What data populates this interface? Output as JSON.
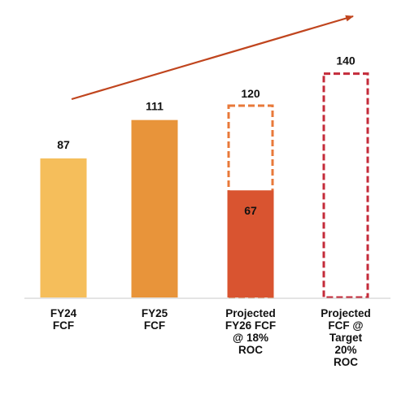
{
  "chart_data": {
    "type": "bar",
    "title": "",
    "xlabel": "",
    "ylabel": "",
    "ylim": [
      0,
      140
    ],
    "grid": false,
    "legend": "none",
    "categories": [
      [
        "FY24",
        "FCF"
      ],
      [
        "FY25",
        "FCF"
      ],
      [
        "Projected",
        "FY26 FCF",
        "@ 18%",
        "ROC"
      ],
      [
        "Projected",
        "FCF @",
        "Target",
        "20%",
        "ROC"
      ]
    ],
    "bars": [
      {
        "value": 87,
        "label": "87",
        "style": "solid",
        "color": "#F5BE5B"
      },
      {
        "value": 111,
        "label": "111",
        "style": "solid",
        "color": "#E8943A"
      },
      {
        "value": 67,
        "label": "67",
        "style": "solid",
        "color": "#D95430",
        "outline_value": 120,
        "outline_label": "120",
        "outline_color": "#E8793A"
      },
      {
        "value": 140,
        "label": "140",
        "style": "dashed-outline",
        "color": "#C42B3A"
      }
    ],
    "trend_arrow": {
      "direction": "up",
      "color": "#C0451E"
    }
  }
}
